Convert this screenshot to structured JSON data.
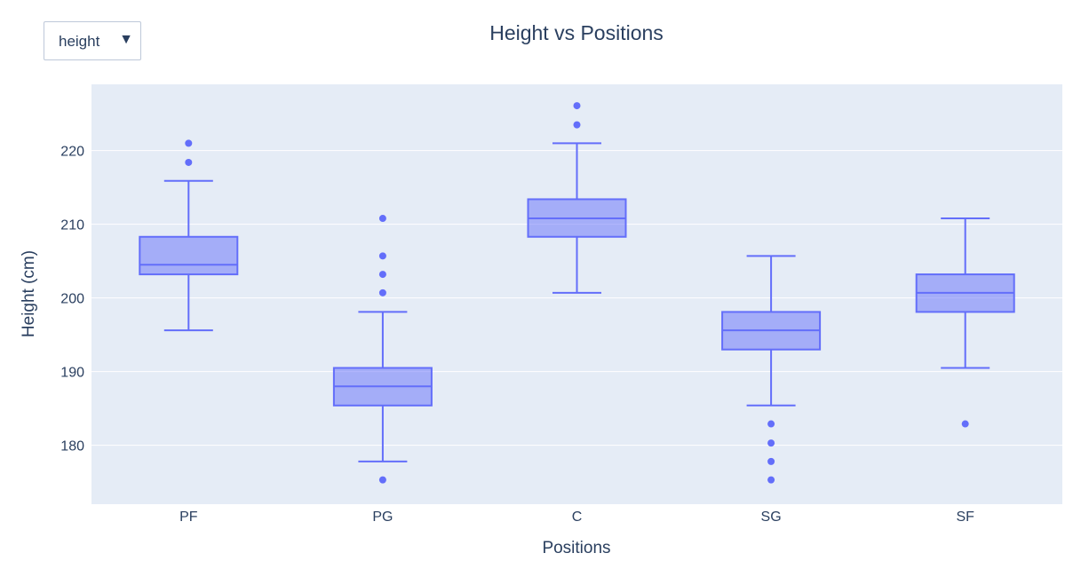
{
  "dropdown": {
    "selected": "height",
    "arrow": "▼"
  },
  "chart_data": {
    "type": "box",
    "title": "Height vs Positions",
    "xlabel": "Positions",
    "ylabel": "Height (cm)",
    "ylim": [
      172,
      229
    ],
    "yticks": [
      180,
      190,
      200,
      210,
      220
    ],
    "categories": [
      "PF",
      "PG",
      "C",
      "SG",
      "SF"
    ],
    "boxes": [
      {
        "name": "PF",
        "lowerfence": 195.6,
        "q1": 203.2,
        "median": 204.5,
        "q3": 208.3,
        "upperfence": 215.9,
        "outliers": [
          218.4,
          221.0
        ]
      },
      {
        "name": "PG",
        "lowerfence": 177.8,
        "q1": 185.4,
        "median": 188.0,
        "q3": 190.5,
        "upperfence": 198.1,
        "outliers": [
          175.3,
          200.7,
          203.2,
          205.7,
          210.8
        ]
      },
      {
        "name": "C",
        "lowerfence": 200.7,
        "q1": 208.3,
        "median": 210.8,
        "q3": 213.4,
        "upperfence": 221.0,
        "outliers": [
          223.5,
          226.1
        ]
      },
      {
        "name": "SG",
        "lowerfence": 185.4,
        "q1": 193.0,
        "median": 195.6,
        "q3": 198.1,
        "upperfence": 205.7,
        "outliers": [
          175.3,
          177.8,
          180.3,
          182.9
        ]
      },
      {
        "name": "SF",
        "lowerfence": 190.5,
        "q1": 198.1,
        "median": 200.7,
        "q3": 203.2,
        "upperfence": 210.8,
        "outliers": [
          182.9
        ]
      }
    ],
    "colors": {
      "box_line": "#636efa",
      "box_fill": "rgba(99,110,250,0.5)",
      "plot_bg": "#e5ecf6",
      "grid": "#ffffff",
      "text": "#2a3f5f"
    },
    "grid": true
  }
}
